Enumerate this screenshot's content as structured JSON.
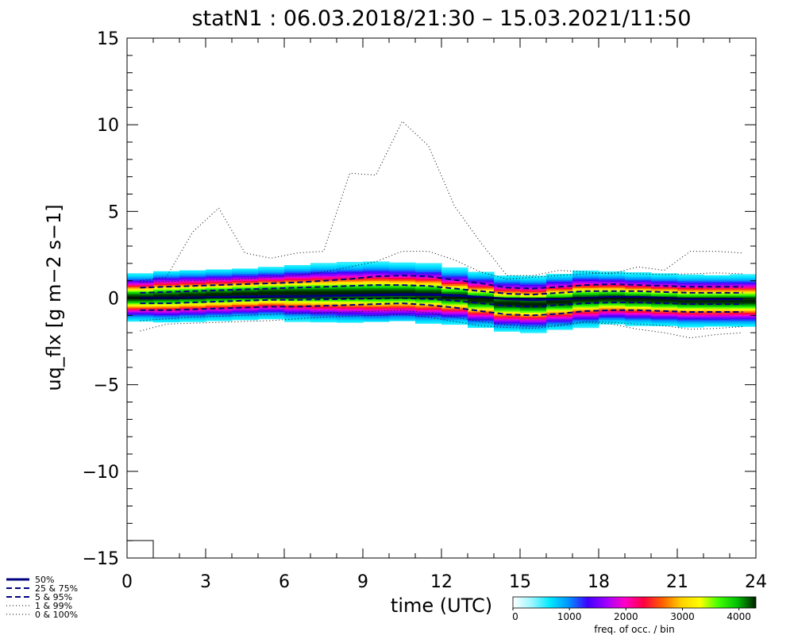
{
  "chart_data": {
    "type": "area",
    "title": "statN1 : 06.03.2018/21:30 – 15.03.2021/11:50",
    "xlabel": "time (UTC)",
    "ylabel": "uq_flx [g m−2 s−1]",
    "xlim": [
      0,
      24
    ],
    "ylim": [
      -15,
      15
    ],
    "x_ticks": [
      "0",
      "3",
      "6",
      "9",
      "12",
      "15",
      "18",
      "21",
      "24"
    ],
    "y_ticks": [
      "−15",
      "−10",
      "−5",
      "0",
      "5",
      "10",
      "15"
    ],
    "x": [
      0.5,
      1.5,
      2.5,
      3.5,
      4.5,
      5.5,
      6.5,
      7.5,
      8.5,
      9.5,
      10.5,
      11.5,
      12.5,
      13.5,
      14.5,
      15.5,
      16.5,
      17.5,
      18.5,
      19.5,
      20.5,
      21.5,
      22.5,
      23.5
    ],
    "series": [
      {
        "name": "50%",
        "style": "solid",
        "lower": [
          0.0,
          0.0,
          0.02,
          0.05,
          0.08,
          0.1,
          0.1,
          0.12,
          0.15,
          0.18,
          0.2,
          0.2,
          0.15,
          0.05,
          -0.05,
          -0.1,
          -0.05,
          0.0,
          0.05,
          0.05,
          0.0,
          -0.05,
          -0.05,
          -0.05
        ],
        "upper": null
      },
      {
        "name": "25 & 75%",
        "style": "dashed",
        "lower": [
          -0.3,
          -0.3,
          -0.25,
          -0.2,
          -0.15,
          -0.1,
          -0.1,
          -0.08,
          -0.05,
          -0.02,
          0.0,
          -0.05,
          -0.15,
          -0.3,
          -0.45,
          -0.5,
          -0.4,
          -0.3,
          -0.25,
          -0.25,
          -0.3,
          -0.35,
          -0.35,
          -0.35
        ],
        "upper": [
          0.3,
          0.35,
          0.4,
          0.45,
          0.5,
          0.55,
          0.6,
          0.65,
          0.7,
          0.75,
          0.75,
          0.7,
          0.55,
          0.4,
          0.25,
          0.2,
          0.3,
          0.4,
          0.4,
          0.4,
          0.35,
          0.3,
          0.3,
          0.3
        ]
      },
      {
        "name": "5 & 95%",
        "style": "dashed",
        "lower": [
          -0.7,
          -0.7,
          -0.65,
          -0.6,
          -0.55,
          -0.5,
          -0.5,
          -0.45,
          -0.4,
          -0.35,
          -0.3,
          -0.4,
          -0.55,
          -0.75,
          -0.95,
          -1.0,
          -0.9,
          -0.75,
          -0.7,
          -0.7,
          -0.75,
          -0.8,
          -0.8,
          -0.8
        ],
        "upper": [
          0.6,
          0.65,
          0.7,
          0.75,
          0.8,
          0.85,
          0.9,
          1.0,
          1.1,
          1.25,
          1.3,
          1.25,
          1.05,
          0.85,
          0.6,
          0.55,
          0.65,
          0.75,
          0.8,
          0.75,
          0.7,
          0.65,
          0.65,
          0.65
        ]
      },
      {
        "name": "1 & 99%",
        "style": "dotted",
        "lower": [
          -1.3,
          -1.2,
          -1.1,
          -1.05,
          -1.0,
          -0.95,
          -0.9,
          -0.85,
          -0.8,
          -0.75,
          -0.7,
          -0.85,
          -1.1,
          -1.35,
          -1.55,
          -1.65,
          -1.55,
          -1.35,
          -1.4,
          -1.5,
          -1.6,
          -1.8,
          -1.75,
          -1.65
        ],
        "upper": [
          0.9,
          0.95,
          1.0,
          1.05,
          1.1,
          1.2,
          1.3,
          1.5,
          1.8,
          2.1,
          2.7,
          2.7,
          2.2,
          1.5,
          1.1,
          1.2,
          1.3,
          1.4,
          1.45,
          1.4,
          1.35,
          1.4,
          1.45,
          1.4
        ]
      },
      {
        "name": "0 & 100%",
        "style": "dotted",
        "lower": [
          -1.9,
          -1.5,
          -1.45,
          -1.4,
          -1.35,
          -1.3,
          -1.2,
          -1.1,
          -1.05,
          -1.0,
          -0.95,
          -1.1,
          -1.35,
          -1.6,
          -1.7,
          -1.75,
          -1.6,
          -1.4,
          -1.5,
          -1.8,
          -2.0,
          -2.3,
          -2.1,
          -2.0
        ],
        "upper": [
          1.0,
          1.2,
          3.8,
          5.2,
          2.6,
          2.3,
          2.6,
          2.7,
          7.2,
          7.1,
          10.2,
          8.8,
          5.3,
          3.2,
          1.3,
          1.3,
          1.6,
          1.5,
          1.4,
          1.8,
          1.6,
          2.7,
          2.7,
          2.6
        ]
      }
    ],
    "heatmap_profile": {
      "center": [
        0.05,
        0.1,
        0.15,
        0.2,
        0.25,
        0.3,
        0.3,
        0.3,
        0.3,
        0.3,
        0.3,
        0.25,
        0.1,
        -0.1,
        -0.3,
        -0.35,
        -0.2,
        -0.05,
        0.0,
        -0.05,
        -0.1,
        -0.15,
        -0.15,
        -0.15
      ]
    },
    "colorbar": {
      "label": "freq. of occ. / bin",
      "ticks": [
        0,
        1000,
        2000,
        3000,
        4000
      ],
      "range": [
        0,
        4300
      ],
      "colors": [
        "#ffffff",
        "#9cf6ff",
        "#00e8ff",
        "#0090ff",
        "#4000ff",
        "#a000ff",
        "#ff00c8",
        "#ff0040",
        "#ff6000",
        "#ffd000",
        "#ffff00",
        "#40ff00",
        "#00c000",
        "#002000"
      ]
    },
    "legend_position": "bottom-left",
    "grid": false
  }
}
